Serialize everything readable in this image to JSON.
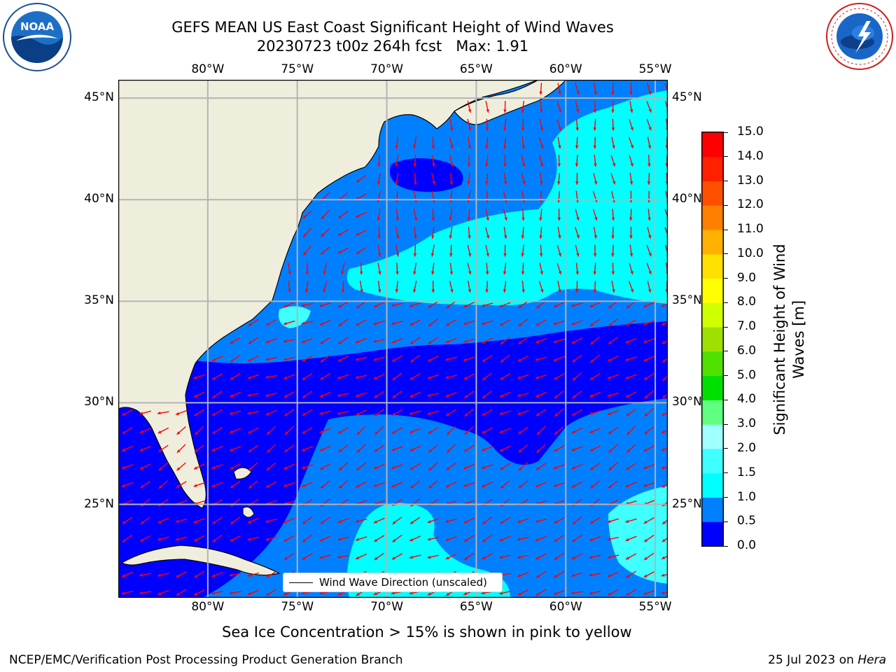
{
  "header": {
    "title_line1": "GEFS MEAN US East Coast Significant Height of Wind Waves",
    "title_line2": "20230723 t00z 264h fcst   Max: 1.91"
  },
  "logos": {
    "left": {
      "name": "noaa-logo",
      "text": "NOAA",
      "ring_text": "NATIONAL OCEANIC AND ATMOSPHERIC ADMINISTRATION · U.S. DEPARTMENT OF COMMERCE"
    },
    "right": {
      "name": "nws-logo",
      "ring_text": "NATIONAL WEATHER SERVICE"
    }
  },
  "map": {
    "lon_range": [
      -85,
      -54.3
    ],
    "lat_range": [
      20.4,
      45.9
    ],
    "lon_ticks": [
      {
        "lon": -80,
        "label": "80°W"
      },
      {
        "lon": -75,
        "label": "75°W"
      },
      {
        "lon": -70,
        "label": "70°W"
      },
      {
        "lon": -65,
        "label": "65°W"
      },
      {
        "lon": -60,
        "label": "60°W"
      },
      {
        "lon": -55,
        "label": "55°W"
      }
    ],
    "lat_ticks": [
      {
        "lat": 45,
        "label": "45°N"
      },
      {
        "lat": 40,
        "label": "40°N"
      },
      {
        "lat": 35,
        "label": "35°N"
      },
      {
        "lat": 30,
        "label": "30°N"
      },
      {
        "lat": 25,
        "label": "25°N"
      }
    ],
    "legend_label": "Wind Wave Direction (unscaled)",
    "colors": {
      "land": "#efeedd",
      "gridline": "#b4b4b4",
      "arrow": "#ff0000",
      "coast": "#000000"
    }
  },
  "colorbar": {
    "label_line1": "Significant Height of Wind",
    "label_line2": "Waves [m]",
    "ticks": [
      "0.0",
      "0.5",
      "1.0",
      "1.5",
      "2.0",
      "3.0",
      "4.0",
      "5.0",
      "6.0",
      "7.0",
      "8.0",
      "9.0",
      "10.0",
      "11.0",
      "12.0",
      "13.0",
      "14.0",
      "15.0"
    ],
    "colors": [
      "#0000ff",
      "#0080ff",
      "#00ffff",
      "#40ffff",
      "#a0ffff",
      "#60ff80",
      "#00e000",
      "#50e000",
      "#a0e000",
      "#d0ff00",
      "#ffff00",
      "#ffe000",
      "#ffb000",
      "#ff8000",
      "#ff5000",
      "#ff2000",
      "#ff0000"
    ]
  },
  "note": "Sea Ice Concentration > 15% is shown in pink to yellow",
  "footer": {
    "left": "NCEP/EMC/Verification Post Processing Product Generation Branch",
    "right_date": "25 Jul 2023 on ",
    "right_host": "Hera"
  }
}
